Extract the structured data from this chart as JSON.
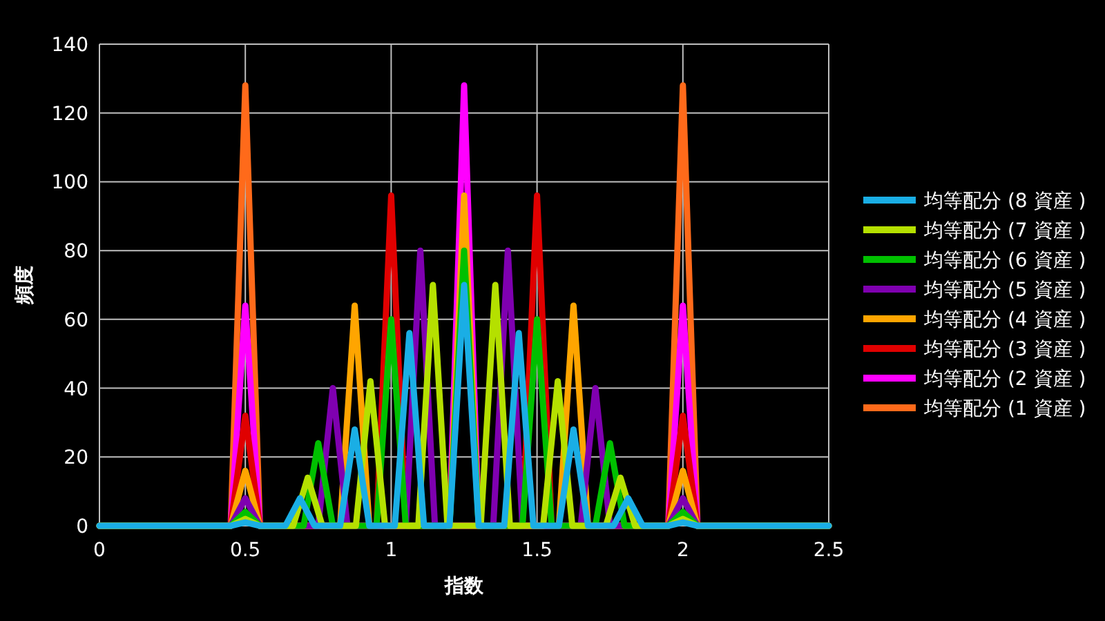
{
  "chart_data": {
    "type": "line",
    "xlabel": "指数",
    "ylabel": "頻度",
    "xlim": [
      0,
      2.5
    ],
    "xticks": [
      0,
      0.5,
      1,
      1.5,
      2,
      2.5
    ],
    "ylim": [
      0,
      140
    ],
    "yticks": [
      0,
      20,
      40,
      60,
      80,
      100,
      120,
      140
    ],
    "grid": true,
    "legend": "right",
    "marker": "none",
    "line_style": "solid",
    "series": [
      {
        "name": "均等配分 (8 資産 )",
        "color": "#1aaee5",
        "x": [
          0,
          0.45,
          0.5,
          0.55,
          0.6375,
          0.6875,
          0.7375,
          0.825,
          0.875,
          0.925,
          1.0125,
          1.0625,
          1.1125,
          1.2,
          1.25,
          1.3,
          1.3875,
          1.4375,
          1.4875,
          1.575,
          1.625,
          1.675,
          1.7625,
          1.8125,
          1.8625,
          1.95,
          2,
          2.05,
          2.5
        ],
        "values": [
          0,
          0,
          1,
          0,
          0,
          8,
          0,
          0,
          28,
          0,
          0,
          56,
          0,
          0,
          70,
          0,
          0,
          56,
          0,
          0,
          28,
          0,
          0,
          8,
          0,
          0,
          1,
          0,
          0
        ]
      },
      {
        "name": "均等配分 (7 資産 )",
        "color": "#b5e000",
        "x": [
          0,
          0.45,
          0.5,
          0.55,
          0.664,
          0.714,
          0.764,
          0.879,
          0.929,
          0.979,
          1.093,
          1.143,
          1.193,
          1.307,
          1.357,
          1.407,
          1.521,
          1.571,
          1.621,
          1.736,
          1.786,
          1.836,
          1.95,
          2,
          2.05,
          2.5
        ],
        "values": [
          0,
          0,
          2,
          0,
          0,
          14,
          0,
          0,
          42,
          0,
          0,
          70,
          0,
          0,
          70,
          0,
          0,
          42,
          0,
          0,
          14,
          0,
          0,
          2,
          0,
          0
        ]
      },
      {
        "name": "均等配分 (6 資産 )",
        "color": "#00c000",
        "x": [
          0,
          0.45,
          0.5,
          0.55,
          0.7,
          0.75,
          0.8,
          0.95,
          1,
          1.05,
          1.2,
          1.25,
          1.3,
          1.45,
          1.5,
          1.55,
          1.7,
          1.75,
          1.8,
          1.95,
          2,
          2.05,
          2.5
        ],
        "values": [
          0,
          0,
          4,
          0,
          0,
          24,
          0,
          0,
          60,
          0,
          0,
          80,
          0,
          0,
          60,
          0,
          0,
          24,
          0,
          0,
          4,
          0,
          0
        ]
      },
      {
        "name": "均等配分 (5 資産 )",
        "color": "#7f00b0",
        "x": [
          0,
          0.45,
          0.5,
          0.55,
          0.75,
          0.8,
          0.85,
          1.05,
          1.1,
          1.15,
          1.35,
          1.4,
          1.45,
          1.65,
          1.7,
          1.75,
          1.95,
          2,
          2.05,
          2.5
        ],
        "values": [
          0,
          0,
          8,
          0,
          0,
          40,
          0,
          0,
          80,
          0,
          0,
          80,
          0,
          0,
          40,
          0,
          0,
          8,
          0,
          0
        ]
      },
      {
        "name": "均等配分 (4 資産 )",
        "color": "#ffa500",
        "x": [
          0,
          0.45,
          0.5,
          0.55,
          0.825,
          0.875,
          0.925,
          1.2,
          1.25,
          1.3,
          1.575,
          1.625,
          1.675,
          1.95,
          2,
          2.05,
          2.5
        ],
        "values": [
          0,
          0,
          16,
          0,
          0,
          64,
          0,
          0,
          96,
          0,
          0,
          64,
          0,
          0,
          16,
          0,
          0
        ]
      },
      {
        "name": "均等配分 (3 資産 )",
        "color": "#e00000",
        "x": [
          0,
          0.45,
          0.5,
          0.55,
          0.95,
          1,
          1.05,
          1.45,
          1.5,
          1.55,
          1.95,
          2,
          2.05,
          2.5
        ],
        "values": [
          0,
          0,
          32,
          0,
          0,
          96,
          0,
          0,
          96,
          0,
          0,
          32,
          0,
          0
        ]
      },
      {
        "name": "均等配分 (2 資産 )",
        "color": "#ff00ff",
        "x": [
          0,
          0.45,
          0.5,
          0.55,
          1.2,
          1.25,
          1.3,
          1.95,
          2,
          2.05,
          2.5
        ],
        "values": [
          0,
          0,
          64,
          0,
          0,
          128,
          0,
          0,
          64,
          0,
          0
        ]
      },
      {
        "name": "均等配分 (1 資産 )",
        "color": "#ff6a1a",
        "x": [
          0,
          0.45,
          0.5,
          0.55,
          1.95,
          2,
          2.05,
          2.5
        ],
        "values": [
          0,
          0,
          128,
          0,
          0,
          128,
          0,
          0
        ]
      }
    ]
  }
}
